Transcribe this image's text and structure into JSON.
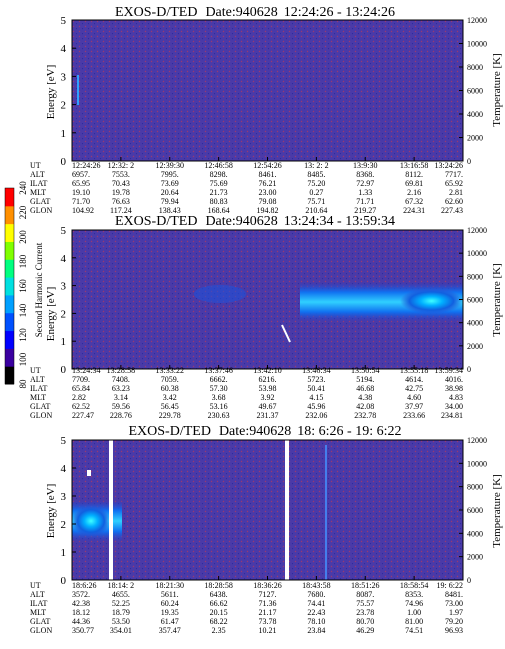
{
  "colors": {
    "background_plasma": "#4a3aa8",
    "speckle": "#8a3a6a",
    "colorbar": [
      "#000000",
      "#3a00a0",
      "#0000ff",
      "#0050ff",
      "#00a0ff",
      "#00e0e0",
      "#00ff80",
      "#80ff00",
      "#ffff00",
      "#ff9000",
      "#ff0000"
    ]
  },
  "colorbar": {
    "label": "Second Harmonic Current",
    "ticks": [
      "80",
      "100",
      "120",
      "140",
      "160",
      "180",
      "200",
      "220",
      "240"
    ]
  },
  "chart_data": [
    {
      "type": "heatmap",
      "title": "EXOS-D/TED",
      "date": "Date:940628",
      "time_range": "12:24:26 - 13:24:26",
      "ylabel": "Energy [eV]",
      "y2label": "Temperature [K]",
      "ylim": [
        0,
        5
      ],
      "y_ticks": [
        "0",
        "1",
        "2",
        "3",
        "4",
        "5"
      ],
      "y2lim": [
        0,
        12000
      ],
      "y2_ticks": [
        "0",
        "2000",
        "4000",
        "6000",
        "8000",
        "10000",
        "12000"
      ],
      "gaps": [],
      "row_labels": [
        "UT",
        "ALT",
        "ILAT",
        "MLT",
        "GLAT",
        "GLON"
      ],
      "columns": [
        [
          "12:24:26",
          "6957.",
          "65.95",
          "19.10",
          "71.70",
          "104.92"
        ],
        [
          "12:32: 2",
          "7553.",
          "70.43",
          "19.78",
          "76.63",
          "117.24"
        ],
        [
          "12:39:30",
          "7995.",
          "73.69",
          "20.64",
          "79.94",
          "138.43"
        ],
        [
          "12:46:58",
          "8298.",
          "75.69",
          "21.73",
          "80.83",
          "168.64"
        ],
        [
          "12:54:26",
          "8461.",
          "76.21",
          "23.00",
          "79.08",
          "194.82"
        ],
        [
          "13: 2: 2",
          "8485.",
          "75.20",
          "0.27",
          "75.71",
          "210.64"
        ],
        [
          "13:9:30",
          "8368.",
          "72.97",
          "1.33",
          "71.71",
          "219.27"
        ],
        [
          "13:16:58",
          "8112.",
          "69.81",
          "2.16",
          "67.32",
          "224.31"
        ],
        [
          "13:24:26",
          "7717.",
          "65.92",
          "2.81",
          "62.60",
          "227.43"
        ]
      ]
    },
    {
      "type": "heatmap",
      "title": "EXOS-D/TED",
      "date": "Date:940628",
      "time_range": "13:24:34 - 13:59:34",
      "ylabel": "Energy [eV]",
      "y2label": "Temperature [K]",
      "ylim": [
        0,
        5
      ],
      "y_ticks": [
        "0",
        "1",
        "2",
        "3",
        "4",
        "5"
      ],
      "y2lim": [
        0,
        12000
      ],
      "y2_ticks": [
        "0",
        "2000",
        "4000",
        "6000",
        "8000",
        "10000",
        "12000"
      ],
      "gaps": [],
      "row_labels": [
        "UT",
        "ALT",
        "ILAT",
        "MLT",
        "GLAT",
        "GLON"
      ],
      "columns": [
        [
          "13:24:34",
          "7709.",
          "65.84",
          "2.82",
          "62.52",
          "227.47"
        ],
        [
          "13:28:58",
          "7408.",
          "63.23",
          "3.14",
          "59.56",
          "228.76"
        ],
        [
          "13:33:22",
          "7059.",
          "60.38",
          "3.42",
          "56.45",
          "229.78"
        ],
        [
          "13:37:46",
          "6662.",
          "57.30",
          "3.68",
          "53.16",
          "230.63"
        ],
        [
          "13:42:10",
          "6216.",
          "53.98",
          "3.92",
          "49.67",
          "231.37"
        ],
        [
          "13:46:34",
          "5723.",
          "50.41",
          "4.15",
          "45.96",
          "232.06"
        ],
        [
          "13:50:54",
          "5194.",
          "46.68",
          "4.38",
          "42.08",
          "232.78"
        ],
        [
          "13:55:18",
          "4614.",
          "42.75",
          "4.60",
          "37.97",
          "233.66"
        ],
        [
          "13:59:34",
          "4016.",
          "38.98",
          "4.83",
          "34.00",
          "234.81"
        ]
      ]
    },
    {
      "type": "heatmap",
      "title": "EXOS-D/TED",
      "date": "Date:940628",
      "time_range": "18: 6:26 - 19: 6:22",
      "ylabel": "Energy [eV]",
      "y2label": "Temperature [K]",
      "ylim": [
        0,
        5
      ],
      "y_ticks": [
        "0",
        "1",
        "2",
        "3",
        "4",
        "5"
      ],
      "y2lim": [
        0,
        12000
      ],
      "y2_ticks": [
        "0",
        "2000",
        "4000",
        "6000",
        "8000",
        "10000",
        "12000"
      ],
      "gaps": [
        "18:14 data gap",
        "18:39 data gap"
      ],
      "row_labels": [
        "UT",
        "ALT",
        "ILAT",
        "MLT",
        "GLAT",
        "GLON"
      ],
      "columns": [
        [
          "18:6:26",
          "3572.",
          "42.38",
          "18.12",
          "44.36",
          "350.77"
        ],
        [
          "18:14: 2",
          "4655.",
          "52.25",
          "18.79",
          "53.50",
          "354.01"
        ],
        [
          "18:21:30",
          "5611.",
          "60.24",
          "19.35",
          "61.47",
          "357.47"
        ],
        [
          "18:28:58",
          "6438.",
          "66.62",
          "20.15",
          "68.22",
          "2.35"
        ],
        [
          "18:36:26",
          "7127.",
          "71.36",
          "21.17",
          "73.78",
          "10.21"
        ],
        [
          "18:43:58",
          "7680.",
          "74.41",
          "22.43",
          "78.10",
          "23.84"
        ],
        [
          "18:51:26",
          "8087.",
          "75.57",
          "23.78",
          "80.70",
          "46.29"
        ],
        [
          "18:58:54",
          "8353.",
          "74.96",
          "1.00",
          "81.00",
          "74.51"
        ],
        [
          "19: 6:22",
          "8481.",
          "73.00",
          "1.97",
          "79.20",
          "96.93"
        ]
      ]
    }
  ]
}
